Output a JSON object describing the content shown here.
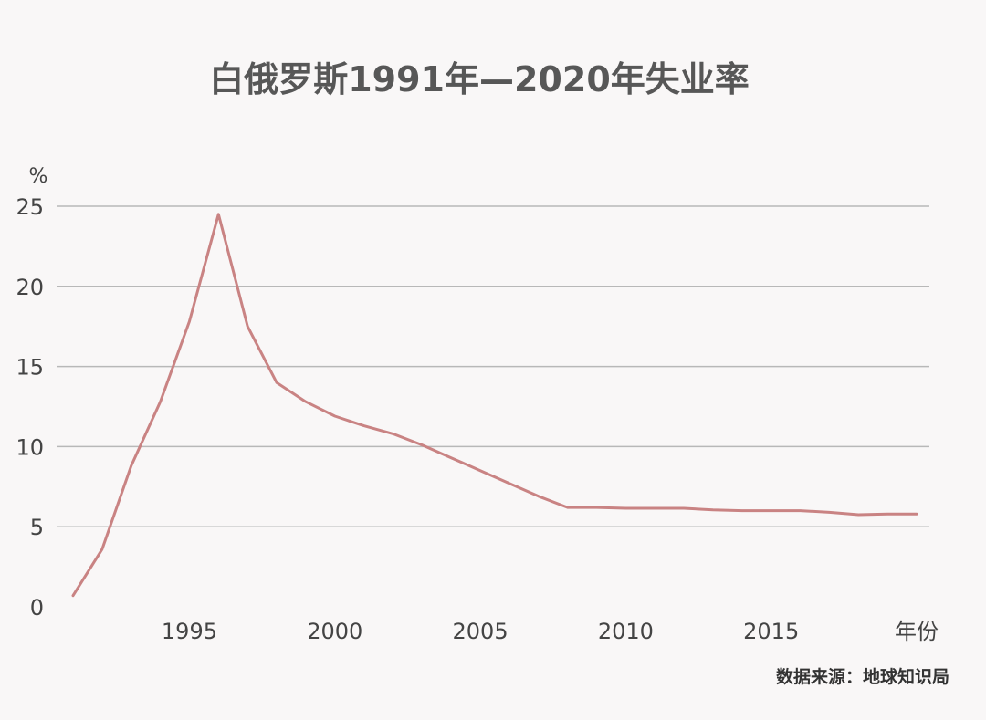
{
  "chart_data": {
    "type": "line",
    "title": "白俄罗斯1991年—2020年失业率",
    "ylabel": "%",
    "xlabel": "年份",
    "source": "数据来源：地球知识局",
    "line_color": "#c98383",
    "grid_color": "#b8b8b8",
    "grid": true,
    "xlim": [
      1991,
      2020
    ],
    "ylim": [
      0,
      25
    ],
    "x_ticks": [
      1995,
      2000,
      2005,
      2010,
      2015
    ],
    "y_ticks": [
      0,
      5,
      10,
      15,
      20,
      25
    ],
    "series": [
      {
        "x": [
          1991,
          1992,
          1993,
          1994,
          1995,
          1996,
          1997,
          1998,
          1999,
          2000,
          2001,
          2002,
          2003,
          2004,
          2005,
          2006,
          2007,
          2008,
          2009,
          2010,
          2011,
          2012,
          2013,
          2014,
          2015,
          2016,
          2017,
          2018,
          2019,
          2020
        ],
        "values": [
          0.7,
          3.6,
          8.8,
          12.8,
          17.8,
          24.5,
          17.5,
          14.0,
          12.8,
          11.9,
          11.3,
          10.8,
          10.1,
          9.3,
          8.5,
          7.7,
          6.9,
          6.2,
          6.2,
          6.15,
          6.15,
          6.15,
          6.05,
          6.0,
          6.0,
          6.0,
          5.9,
          5.75,
          5.8,
          5.8
        ]
      }
    ]
  }
}
